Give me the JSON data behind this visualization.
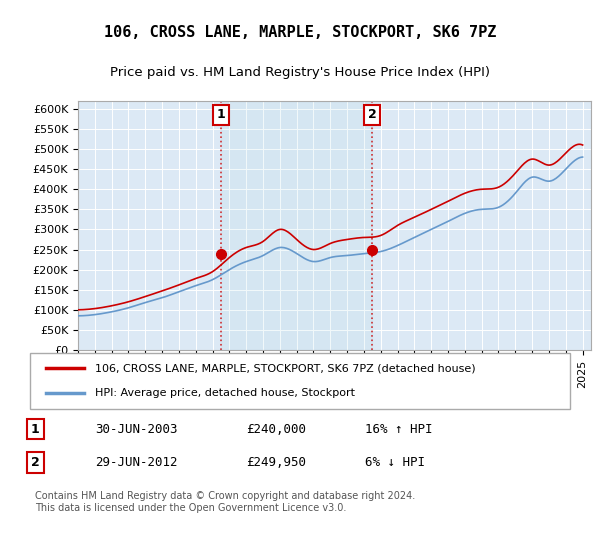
{
  "title": "106, CROSS LANE, MARPLE, STOCKPORT, SK6 7PZ",
  "subtitle": "Price paid vs. HM Land Registry's House Price Index (HPI)",
  "ylabel_ticks": [
    "£0",
    "£50K",
    "£100K",
    "£150K",
    "£200K",
    "£250K",
    "£300K",
    "£350K",
    "£400K",
    "£450K",
    "£500K",
    "£550K",
    "£600K"
  ],
  "ylim": [
    0,
    620000
  ],
  "xlim_start": 1995.0,
  "xlim_end": 2025.5,
  "legend_line1": "106, CROSS LANE, MARPLE, STOCKPORT, SK6 7PZ (detached house)",
  "legend_line2": "HPI: Average price, detached house, Stockport",
  "sale1_date": "30-JUN-2003",
  "sale1_price": "£240,000",
  "sale1_hpi": "16% ↑ HPI",
  "sale2_date": "29-JUN-2012",
  "sale2_price": "£249,950",
  "sale2_hpi": "6% ↓ HPI",
  "footnote": "Contains HM Land Registry data © Crown copyright and database right 2024.\nThis data is licensed under the Open Government Licence v3.0.",
  "bg_color": "#dce9f5",
  "plot_bg": "#dce9f5",
  "red_color": "#cc0000",
  "blue_color": "#6699cc",
  "sale1_x": 2003.5,
  "sale2_x": 2012.5,
  "hpi_years": [
    1995,
    1996,
    1997,
    1998,
    1999,
    2000,
    2001,
    2002,
    2003,
    2004,
    2005,
    2006,
    2007,
    2008,
    2009,
    2010,
    2011,
    2012,
    2013,
    2014,
    2015,
    2016,
    2017,
    2018,
    2019,
    2020,
    2021,
    2022,
    2023,
    2024,
    2025
  ],
  "hpi_values": [
    85000,
    88000,
    95000,
    105000,
    118000,
    130000,
    145000,
    160000,
    175000,
    200000,
    220000,
    235000,
    255000,
    240000,
    220000,
    230000,
    235000,
    240000,
    245000,
    260000,
    280000,
    300000,
    320000,
    340000,
    350000,
    355000,
    390000,
    430000,
    420000,
    450000,
    480000
  ],
  "red_years": [
    1995,
    1996,
    1997,
    1998,
    1999,
    2000,
    2001,
    2002,
    2003,
    2004,
    2005,
    2006,
    2007,
    2008,
    2009,
    2010,
    2011,
    2012,
    2013,
    2014,
    2015,
    2016,
    2017,
    2018,
    2019,
    2020,
    2021,
    2022,
    2023,
    2024,
    2025
  ],
  "red_values": [
    100000,
    103000,
    110000,
    120000,
    133000,
    147000,
    162000,
    178000,
    195000,
    230000,
    255000,
    270000,
    300000,
    275000,
    250000,
    265000,
    275000,
    280000,
    285000,
    310000,
    330000,
    350000,
    370000,
    390000,
    400000,
    405000,
    440000,
    475000,
    460000,
    490000,
    510000
  ]
}
